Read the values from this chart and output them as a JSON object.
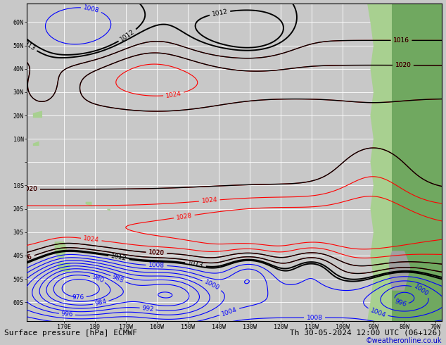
{
  "title_left": "Surface pressure [hPa] ECMWF",
  "title_right": "Th 30-05-2024 12:00 UTC (06+126)",
  "copyright": "©weatheronline.co.uk",
  "bg_color": "#c8c8c8",
  "land_color_green": "#90c878",
  "land_color_dark": "#508050",
  "grid_color": "#ffffff",
  "figsize": [
    6.34,
    4.9
  ],
  "dpi": 100,
  "contour_color_blue": "#0000ff",
  "contour_color_black": "#000000",
  "contour_color_red": "#ff0000",
  "label_fontsize": 6.5,
  "title_fontsize": 8,
  "copyright_color": "#0000cc"
}
